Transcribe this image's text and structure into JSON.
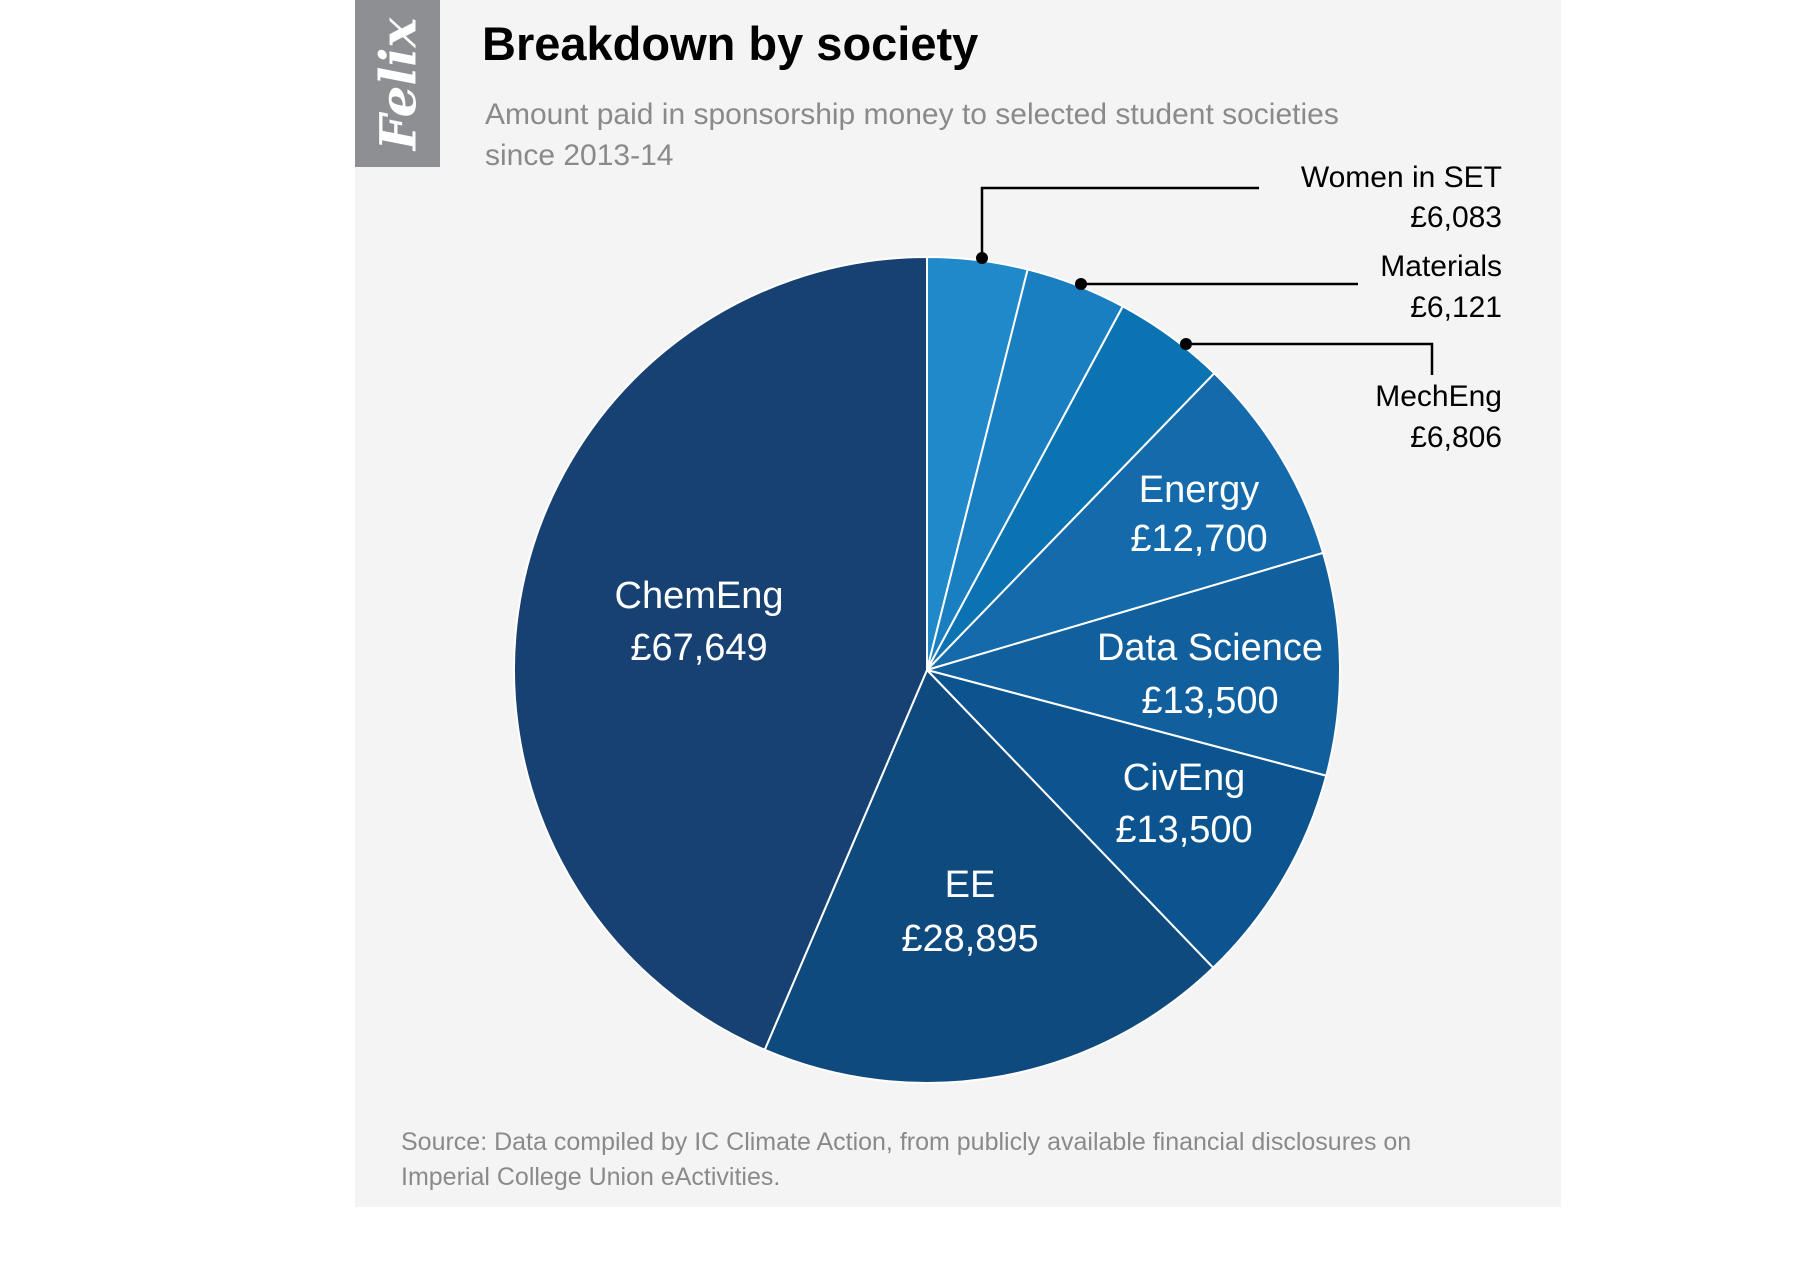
{
  "logo": "Felix",
  "chart_data": {
    "type": "pie",
    "title": "Breakdown by society",
    "subtitle": [
      "Amount paid in sponsorship money to selected student societies",
      "since 2013-14"
    ],
    "currency": "£",
    "slices": [
      {
        "label": "Women in SET",
        "value": 6083,
        "display": "£6,083",
        "color": "#1f89c9"
      },
      {
        "label": "Materials",
        "value": 6121,
        "display": "£6,121",
        "color": "#1a7fc1"
      },
      {
        "label": "MechEng",
        "value": 6806,
        "display": "£6,806",
        "color": "#0c73b3"
      },
      {
        "label": "Energy",
        "value": 12700,
        "display": "£12,700",
        "color": "#146aaa"
      },
      {
        "label": "Data Science",
        "value": 13500,
        "display": "£13,500",
        "color": "#125f9d"
      },
      {
        "label": "CivEng",
        "value": 13500,
        "display": "£13,500",
        "color": "#0c548f"
      },
      {
        "label": "EE",
        "value": 28895,
        "display": "£28,895",
        "color": "#0f4a7f"
      },
      {
        "label": "ChemEng",
        "value": 67649,
        "display": "£67,649",
        "color": "#164172"
      }
    ],
    "start_angle": "12 o'clock, clockwise",
    "source": [
      "Source: Data compiled by IC Climate Action, from publicly available financial disclosures on",
      "Imperial College Union eActivities."
    ]
  }
}
